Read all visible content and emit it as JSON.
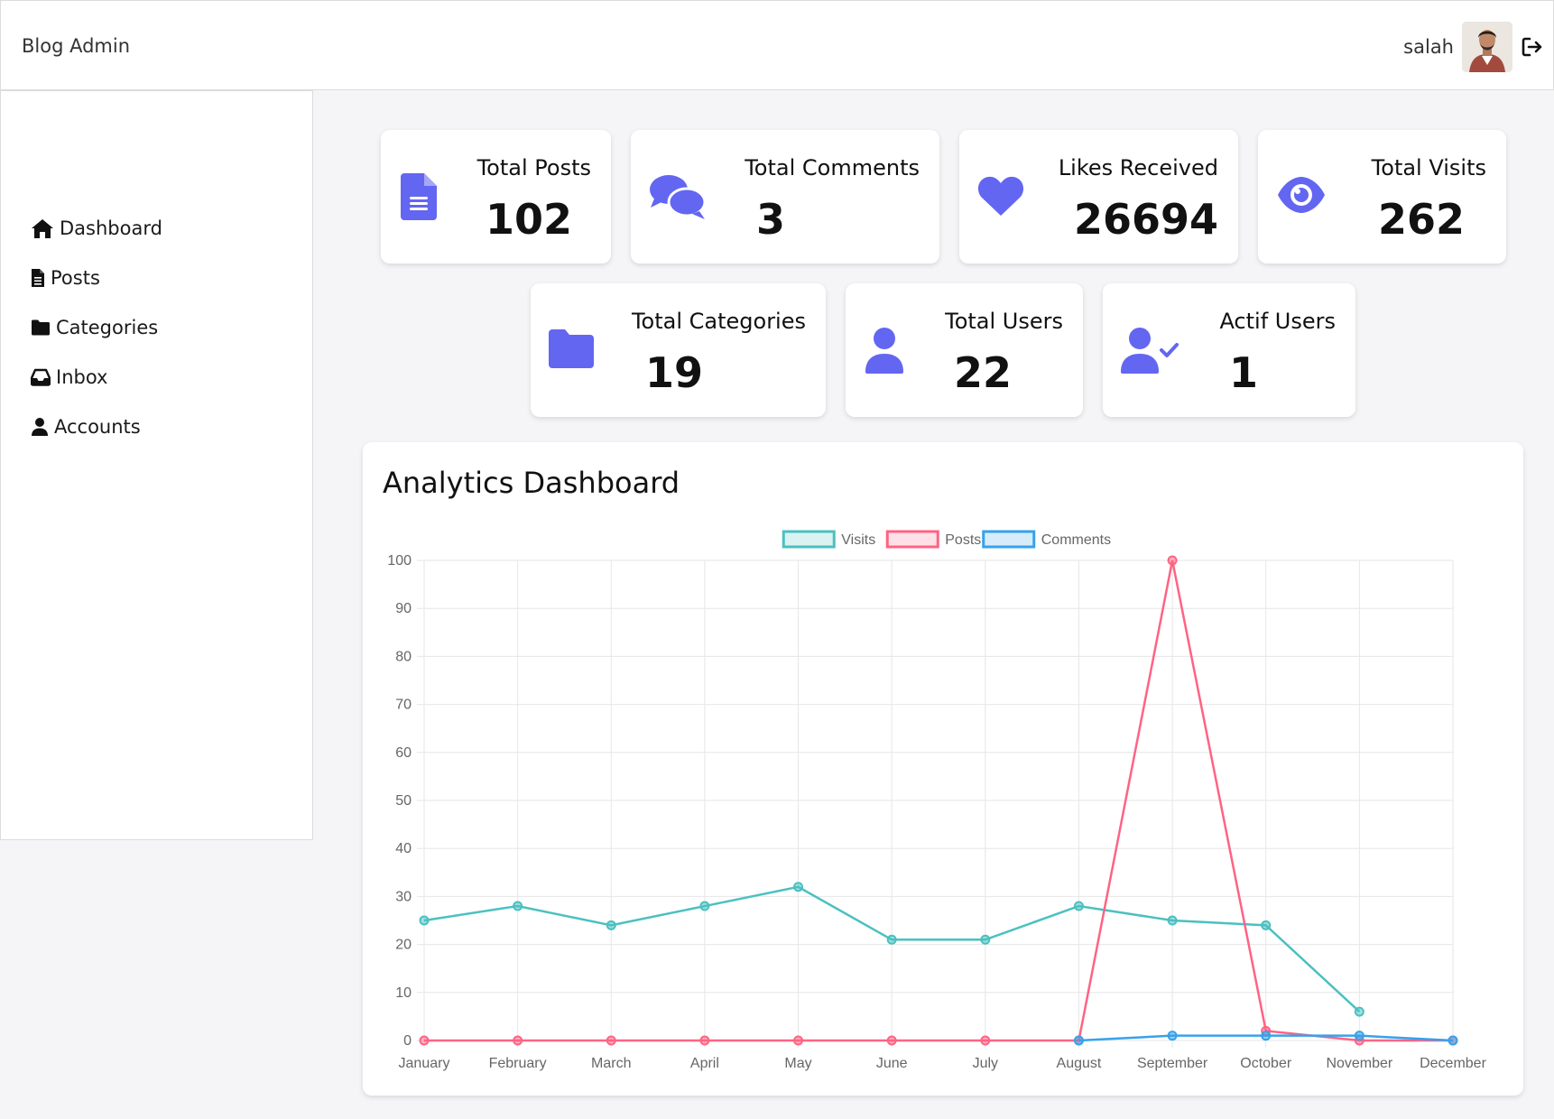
{
  "navbar": {
    "brand": "Blog Admin",
    "username": "salah",
    "avatar_icon": "user-avatar",
    "logout_icon": "sign-out-icon"
  },
  "sidebar": {
    "items": [
      {
        "label": "Dashboard",
        "icon": "home-icon"
      },
      {
        "label": "Posts",
        "icon": "file-icon"
      },
      {
        "label": "Categories",
        "icon": "folder-icon"
      },
      {
        "label": "Inbox",
        "icon": "inbox-icon"
      },
      {
        "label": "Accounts",
        "icon": "user-icon"
      }
    ]
  },
  "stats": [
    {
      "label": "Total Posts",
      "value": "102",
      "icon": "file-icon"
    },
    {
      "label": "Total Comments",
      "value": "3",
      "icon": "comments-icon"
    },
    {
      "label": "Likes Received",
      "value": "26694",
      "icon": "heart-icon"
    },
    {
      "label": "Total Visits",
      "value": "262",
      "icon": "eye-icon"
    },
    {
      "label": "Total Categories",
      "value": "19",
      "icon": "folder-icon"
    },
    {
      "label": "Total Users",
      "value": "22",
      "icon": "user-icon"
    },
    {
      "label": "Actif Users",
      "value": "1",
      "icon": "user-check-icon"
    }
  ],
  "colors": {
    "accent": "#6366f1",
    "visits": "#4bc0c0",
    "posts": "#ff6384",
    "comments": "#36a2eb"
  },
  "analytics": {
    "title": "Analytics Dashboard"
  },
  "chart_data": {
    "type": "line",
    "title": "",
    "xlabel": "",
    "ylabel": "",
    "ylim": [
      0,
      100
    ],
    "yticks": [
      0,
      10,
      20,
      30,
      40,
      50,
      60,
      70,
      80,
      90,
      100
    ],
    "grid": true,
    "legend_position": "top",
    "categories": [
      "January",
      "February",
      "March",
      "April",
      "May",
      "June",
      "July",
      "August",
      "September",
      "October",
      "November",
      "December"
    ],
    "series": [
      {
        "name": "Visits",
        "values": [
          25,
          28,
          24,
          28,
          32,
          21,
          21,
          28,
          25,
          24,
          6,
          null
        ]
      },
      {
        "name": "Posts",
        "values": [
          0,
          0,
          0,
          0,
          0,
          0,
          0,
          0,
          100,
          2,
          0,
          0
        ]
      },
      {
        "name": "Comments",
        "values": [
          null,
          null,
          null,
          null,
          null,
          null,
          null,
          0,
          1,
          1,
          1,
          0
        ]
      }
    ]
  }
}
